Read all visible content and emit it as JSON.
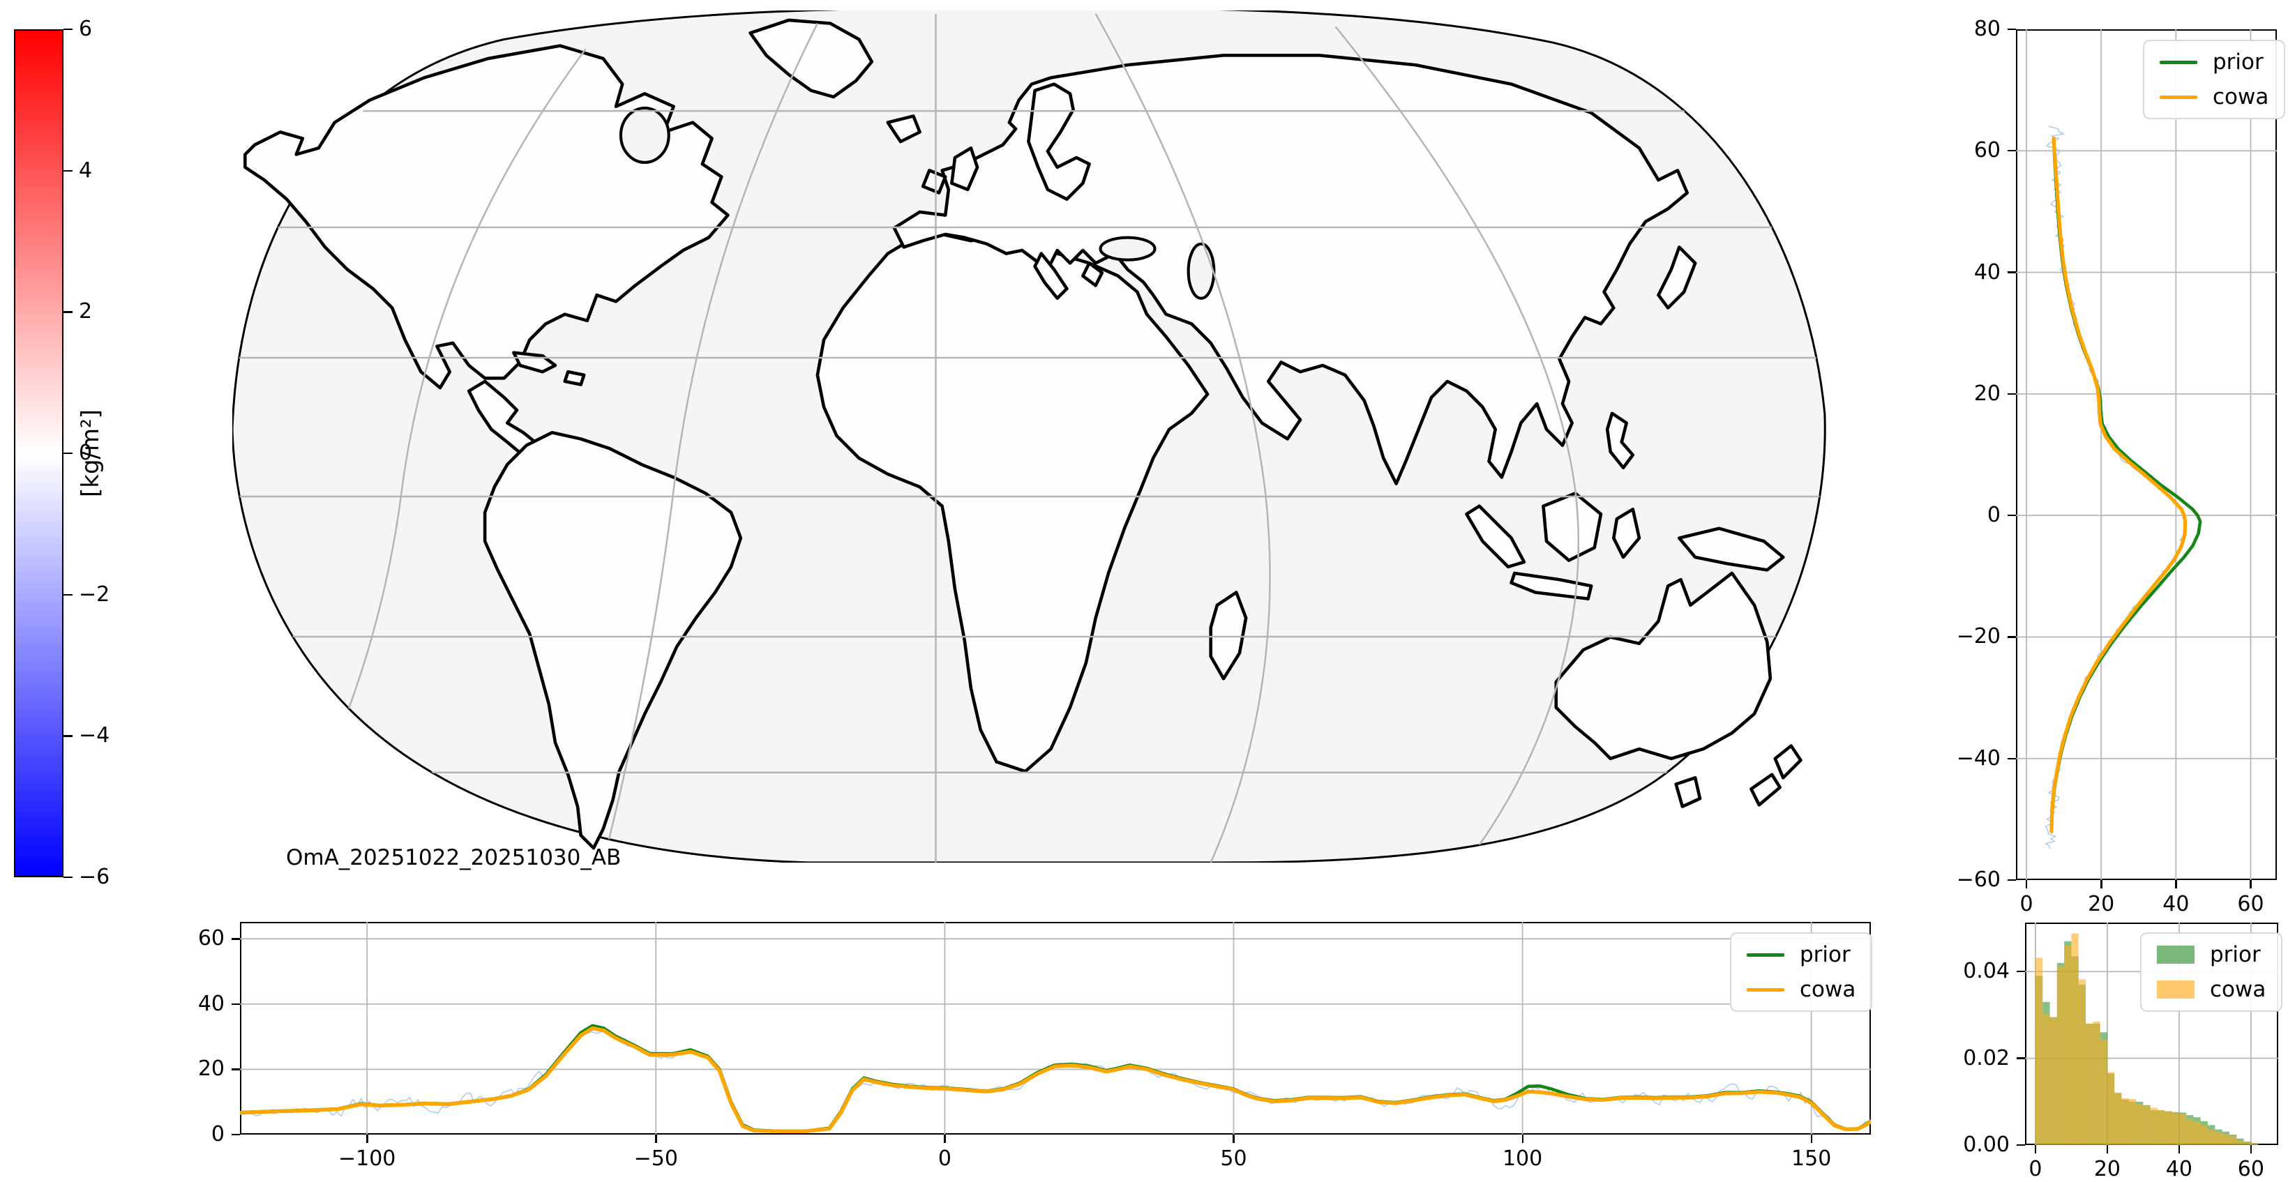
{
  "colorbar": {
    "label": "[kg/m²]",
    "tick_labels": [
      "6",
      "4",
      "2",
      "0",
      "−2",
      "−4",
      "−6"
    ],
    "top_color": "#ff0000",
    "mid_color": "#ffffff",
    "bottom_color": "#0000ff"
  },
  "map": {
    "annotation": "OmA_20251022_20251030_AB",
    "ocean_color": "#f5f5f5",
    "land_color": "#fefefe",
    "coast_color": "#000000",
    "grid_color": "#b5b5b5"
  },
  "colors": {
    "prior": "#168716",
    "cowa": "#ffa500",
    "raw": "#a9c6e8",
    "grid": "#b8b8b8"
  },
  "legend": {
    "prior_label": "prior",
    "cowa_label": "cowa"
  },
  "chart_data": [
    {
      "id": "lat_profile",
      "type": "line",
      "title": "",
      "xlabel": "",
      "ylabel": "",
      "note": "zonal-mean total column water vs latitude",
      "xlim": [
        -2.8,
        67
      ],
      "ylim": [
        -60,
        80
      ],
      "xticks": [
        0,
        20,
        40,
        60
      ],
      "xtick_labels": [
        "0",
        "20",
        "40",
        "60"
      ],
      "yticks": [
        80,
        60,
        40,
        20,
        0,
        -20,
        -40,
        -60
      ],
      "ytick_labels": [
        "80",
        "60",
        "40",
        "20",
        "0",
        "−20",
        "−40",
        "−60"
      ],
      "legend_position": "upper right",
      "grid": true,
      "points_lat_prior_cowa": [
        [
          62,
          7.3,
          7.3
        ],
        [
          58,
          7.6,
          7.7
        ],
        [
          54,
          8.0,
          8.2
        ],
        [
          50,
          8.4,
          8.6
        ],
        [
          46,
          8.9,
          9.1
        ],
        [
          42,
          9.6,
          9.8
        ],
        [
          38,
          10.6,
          10.8
        ],
        [
          34,
          12.0,
          12.2
        ],
        [
          30,
          13.8,
          14.0
        ],
        [
          27,
          15.5,
          15.7
        ],
        [
          24,
          17.5,
          17.6
        ],
        [
          21,
          19.2,
          19.0
        ],
        [
          19,
          19.8,
          19.4
        ],
        [
          17,
          19.9,
          19.5
        ],
        [
          15,
          20.3,
          19.8
        ],
        [
          13,
          22.0,
          21.2
        ],
        [
          11,
          24.5,
          23.5
        ],
        [
          9,
          28.0,
          27.0
        ],
        [
          7,
          32.0,
          31.0
        ],
        [
          5,
          36.0,
          34.8
        ],
        [
          3,
          40.5,
          38.5
        ],
        [
          1,
          44.5,
          41.5
        ],
        [
          0,
          45.8,
          42.2
        ],
        [
          -1,
          46.5,
          42.5
        ],
        [
          -3,
          46.0,
          42.4
        ],
        [
          -5,
          44.5,
          41.5
        ],
        [
          -7,
          42.0,
          39.8
        ],
        [
          -9,
          39.0,
          37.5
        ],
        [
          -12,
          34.8,
          33.5
        ],
        [
          -15,
          30.5,
          29.5
        ],
        [
          -18,
          26.5,
          25.8
        ],
        [
          -21,
          22.8,
          22.2
        ],
        [
          -24,
          19.5,
          19.0
        ],
        [
          -27,
          16.6,
          16.2
        ],
        [
          -30,
          14.2,
          13.9
        ],
        [
          -33,
          12.2,
          11.9
        ],
        [
          -36,
          10.6,
          10.4
        ],
        [
          -39,
          9.3,
          9.1
        ],
        [
          -42,
          8.3,
          8.2
        ],
        [
          -45,
          7.5,
          7.4
        ],
        [
          -48,
          7.0,
          6.9
        ],
        [
          -50,
          6.8,
          6.8
        ],
        [
          -52,
          6.7,
          6.7
        ]
      ],
      "raw_trace": {
        "extends_lat": [
          64,
          -55
        ],
        "amplitude": 1.0
      }
    },
    {
      "id": "lon_profile",
      "type": "line",
      "note": "meridional-mean total column water vs longitude",
      "xlim": [
        -122,
        160.3
      ],
      "ylim": [
        0,
        65.2
      ],
      "xticks": [
        -100,
        -50,
        0,
        50,
        100,
        150
      ],
      "xtick_labels": [
        "−100",
        "−50",
        "0",
        "50",
        "100",
        "150"
      ],
      "yticks": [
        0,
        20,
        40,
        60
      ],
      "ytick_labels": [
        "0",
        "20",
        "40",
        "60"
      ],
      "legend_position": "upper right",
      "grid": true,
      "points_lon_prior_cowa": [
        [
          -122,
          6.8,
          6.7
        ],
        [
          -116,
          7.2,
          7.1
        ],
        [
          -110,
          7.5,
          7.4
        ],
        [
          -105,
          7.9,
          7.8
        ],
        [
          -101,
          9.5,
          9.3
        ],
        [
          -98,
          9.0,
          8.9
        ],
        [
          -94,
          9.2,
          9.1
        ],
        [
          -90,
          9.6,
          9.5
        ],
        [
          -86,
          9.4,
          9.3
        ],
        [
          -82,
          10.2,
          10.1
        ],
        [
          -78,
          11.0,
          10.9
        ],
        [
          -75,
          12.0,
          11.9
        ],
        [
          -72,
          14.0,
          13.8
        ],
        [
          -69,
          18.5,
          18.0
        ],
        [
          -66,
          25.0,
          24.4
        ],
        [
          -63,
          31.2,
          30.4
        ],
        [
          -61,
          33.4,
          32.6
        ],
        [
          -59,
          32.6,
          31.9
        ],
        [
          -57,
          30.2,
          29.6
        ],
        [
          -54,
          27.6,
          27.2
        ],
        [
          -51,
          24.8,
          24.4
        ],
        [
          -47,
          24.8,
          24.5
        ],
        [
          -44,
          26.0,
          25.4
        ],
        [
          -41,
          24.0,
          23.6
        ],
        [
          -39,
          20.0,
          19.6
        ],
        [
          -37,
          10.0,
          9.6
        ],
        [
          -35,
          3.0,
          2.6
        ],
        [
          -33,
          1.4,
          1.2
        ],
        [
          -29,
          1.1,
          1.0
        ],
        [
          -24,
          1.1,
          1.0
        ],
        [
          -20,
          2.0,
          1.8
        ],
        [
          -18,
          7.0,
          6.6
        ],
        [
          -16,
          14.0,
          13.6
        ],
        [
          -14,
          17.4,
          17.0
        ],
        [
          -12,
          16.4,
          16.1
        ],
        [
          -9,
          15.4,
          15.1
        ],
        [
          -6,
          14.8,
          14.6
        ],
        [
          -3,
          14.4,
          14.2
        ],
        [
          0,
          14.3,
          14.1
        ],
        [
          4,
          13.8,
          13.6
        ],
        [
          7,
          13.3,
          13.2
        ],
        [
          10,
          14.0,
          13.8
        ],
        [
          13,
          15.8,
          15.5
        ],
        [
          16,
          19.0,
          18.6
        ],
        [
          19,
          21.3,
          20.9
        ],
        [
          22,
          21.6,
          21.2
        ],
        [
          25,
          21.0,
          20.6
        ],
        [
          28,
          19.6,
          19.3
        ],
        [
          30,
          20.4,
          20.0
        ],
        [
          32,
          21.3,
          20.9
        ],
        [
          35,
          20.3,
          20.0
        ],
        [
          38,
          18.6,
          18.3
        ],
        [
          41,
          17.2,
          16.9
        ],
        [
          44,
          16.0,
          15.8
        ],
        [
          47,
          15.0,
          14.8
        ],
        [
          50,
          14.0,
          13.8
        ],
        [
          52,
          12.4,
          12.2
        ],
        [
          54,
          11.2,
          11.0
        ],
        [
          57,
          10.4,
          10.2
        ],
        [
          60,
          10.7,
          10.5
        ],
        [
          63,
          11.4,
          11.2
        ],
        [
          66,
          11.4,
          11.2
        ],
        [
          69,
          11.3,
          11.1
        ],
        [
          72,
          11.6,
          11.4
        ],
        [
          75,
          10.2,
          10.0
        ],
        [
          78,
          9.8,
          9.6
        ],
        [
          81,
          10.6,
          10.4
        ],
        [
          84,
          11.5,
          11.3
        ],
        [
          87,
          12.2,
          12.0
        ],
        [
          90,
          12.5,
          12.3
        ],
        [
          93,
          11.2,
          11.0
        ],
        [
          95,
          10.4,
          10.2
        ],
        [
          97,
          10.8,
          10.6
        ],
        [
          99,
          12.6,
          11.8
        ],
        [
          101,
          14.8,
          13.2
        ],
        [
          103,
          14.9,
          13.0
        ],
        [
          105,
          14.0,
          12.6
        ],
        [
          108,
          12.2,
          11.6
        ],
        [
          111,
          11.0,
          10.8
        ],
        [
          114,
          10.8,
          10.6
        ],
        [
          117,
          11.4,
          11.2
        ],
        [
          120,
          11.5,
          11.3
        ],
        [
          123,
          11.3,
          11.1
        ],
        [
          126,
          11.5,
          11.3
        ],
        [
          129,
          11.5,
          11.3
        ],
        [
          132,
          11.9,
          11.7
        ],
        [
          135,
          12.9,
          12.6
        ],
        [
          138,
          12.9,
          12.7
        ],
        [
          141,
          13.4,
          13.1
        ],
        [
          144,
          13.0,
          12.8
        ],
        [
          146,
          12.5,
          12.2
        ],
        [
          148,
          11.8,
          11.5
        ],
        [
          150,
          10.0,
          9.7
        ],
        [
          152,
          6.5,
          6.2
        ],
        [
          154,
          3.0,
          2.8
        ],
        [
          156,
          1.7,
          1.6
        ],
        [
          158,
          1.8,
          1.7
        ],
        [
          159.5,
          3.2,
          3.0
        ],
        [
          160.3,
          4.2,
          4.0
        ]
      ],
      "raw_trace": {
        "amplitude": 1.2
      }
    },
    {
      "id": "histogram",
      "type": "bar",
      "note": "normalized density of total column water",
      "bin_start": 0,
      "bin_width": 2,
      "xlim": [
        -2.9,
        67.6
      ],
      "ylim": [
        0,
        0.0513
      ],
      "xticks": [
        0,
        20,
        40,
        60
      ],
      "xtick_labels": [
        "0",
        "20",
        "40",
        "60"
      ],
      "yticks": [
        0,
        0.02,
        0.04
      ],
      "ytick_labels": [
        "0.00",
        "0.02",
        "0.04"
      ],
      "legend_position": "upper right",
      "grid": true,
      "series": [
        {
          "name": "prior",
          "values": [
            0.039,
            0.033,
            0.0295,
            0.042,
            0.047,
            0.0435,
            0.037,
            0.028,
            0.028,
            0.026,
            0.0165,
            0.012,
            0.0105,
            0.01,
            0.01,
            0.0092,
            0.008,
            0.008,
            0.0078,
            0.0076,
            0.0075,
            0.0069,
            0.0064,
            0.0055,
            0.0046,
            0.0036,
            0.0031,
            0.0024,
            0.0015,
            0.0008,
            0.0004
          ]
        },
        {
          "name": "cowa",
          "values": [
            0.0432,
            0.0302,
            0.0295,
            0.0412,
            0.046,
            0.0488,
            0.0382,
            0.028,
            0.0285,
            0.0243,
            0.0168,
            0.0121,
            0.0108,
            0.0106,
            0.0095,
            0.009,
            0.0086,
            0.0081,
            0.0078,
            0.0075,
            0.0072,
            0.006,
            0.0054,
            0.0045,
            0.0035,
            0.003,
            0.0025,
            0.002,
            0.001,
            0.0006,
            0.0005
          ]
        }
      ]
    }
  ]
}
